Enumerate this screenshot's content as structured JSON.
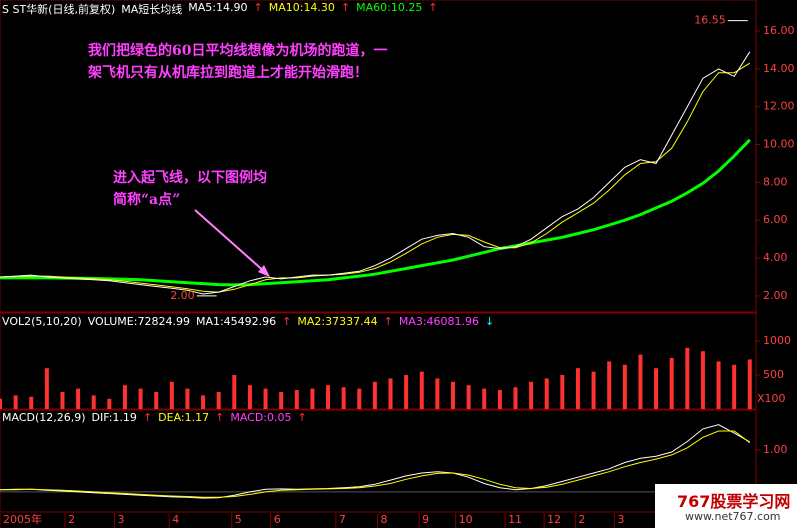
{
  "chart_data": [
    {
      "type": "line",
      "header": [
        {
          "text": "S ST华新(日线,前复权)",
          "color": "#ffffff"
        },
        {
          "text": "MA短长均线",
          "color": "#ffffff"
        },
        {
          "text": "MA5:14.90",
          "color": "#ffffff"
        },
        {
          "text": "↑",
          "color": "#ff3030"
        },
        {
          "text": "MA10:14.30",
          "color": "#ffff00"
        },
        {
          "text": "↑",
          "color": "#ff3030"
        },
        {
          "text": "MA60:10.25",
          "color": "#00ff00"
        },
        {
          "text": "↑",
          "color": "#ff3030"
        }
      ],
      "annotations": [
        "我们把绿色的60日平均线想像为机场的跑道，一",
        "架飞机只有从机库拉到跑道上才能开始滑跑！",
        "进入起飞线，以下图例均",
        "简称“a点”"
      ],
      "point_labels": [
        {
          "label": "16.55",
          "value": 16.55,
          "x": 288
        },
        {
          "label": "2.00",
          "value": 2.0,
          "x": 84
        }
      ],
      "x": [
        0,
        6,
        12,
        18,
        24,
        30,
        36,
        42,
        48,
        54,
        60,
        66,
        72,
        78,
        84,
        90,
        96,
        102,
        108,
        114,
        120,
        126,
        132,
        138,
        144,
        150,
        156,
        162,
        168,
        174,
        180,
        186,
        192,
        198,
        204,
        210,
        216,
        222,
        228,
        234,
        240,
        246,
        252,
        258,
        264,
        270,
        276,
        282,
        288
      ],
      "xlim": [
        0,
        290
      ],
      "xticks": [
        {
          "value": 0,
          "label": "2005年"
        },
        {
          "value": 25,
          "label": "2"
        },
        {
          "value": 44,
          "label": "3"
        },
        {
          "value": 65,
          "label": "4"
        },
        {
          "value": 89,
          "label": "5"
        },
        {
          "value": 104,
          "label": "6"
        },
        {
          "value": 129,
          "label": "7"
        },
        {
          "value": 145,
          "label": "8"
        },
        {
          "value": 161,
          "label": "9"
        },
        {
          "value": 175,
          "label": "10"
        },
        {
          "value": 194,
          "label": "11"
        },
        {
          "value": 209,
          "label": "12"
        },
        {
          "value": 221,
          "label": "2"
        },
        {
          "value": 236,
          "label": "3"
        }
      ],
      "ylim": [
        1.15,
        17.64
      ],
      "yticks": [
        {
          "value": 2,
          "label": "2.00"
        },
        {
          "value": 4,
          "label": "4.00"
        },
        {
          "value": 6,
          "label": "6.00"
        },
        {
          "value": 8,
          "label": "8.00"
        },
        {
          "value": 10,
          "label": "10.00"
        },
        {
          "value": 12,
          "label": "12.00"
        },
        {
          "value": 14,
          "label": "14.00"
        },
        {
          "value": 16,
          "label": "16.00"
        }
      ],
      "series": [
        {
          "color": "#00ff00",
          "width": 3,
          "values": [
            2.95,
            2.95,
            2.95,
            2.95,
            2.94,
            2.93,
            2.92,
            2.9,
            2.88,
            2.85,
            2.8,
            2.75,
            2.7,
            2.65,
            2.6,
            2.58,
            2.6,
            2.65,
            2.7,
            2.75,
            2.8,
            2.85,
            2.95,
            3.05,
            3.15,
            3.3,
            3.45,
            3.6,
            3.75,
            3.9,
            4.1,
            4.3,
            4.5,
            4.65,
            4.8,
            4.95,
            5.1,
            5.3,
            5.5,
            5.75,
            6.0,
            6.3,
            6.65,
            7.0,
            7.45,
            7.95,
            8.6,
            9.4,
            10.25
          ]
        },
        {
          "color": "#ffff00",
          "width": 1,
          "values": [
            3.0,
            3.02,
            3.05,
            3.05,
            3.0,
            2.95,
            2.9,
            2.85,
            2.78,
            2.68,
            2.58,
            2.48,
            2.38,
            2.25,
            2.2,
            2.35,
            2.6,
            2.85,
            2.95,
            2.95,
            3.05,
            3.1,
            3.15,
            3.25,
            3.45,
            3.8,
            4.25,
            4.75,
            5.1,
            5.25,
            5.2,
            4.85,
            4.55,
            4.55,
            4.8,
            5.3,
            5.9,
            6.4,
            6.9,
            7.6,
            8.4,
            9.0,
            9.1,
            9.8,
            11.2,
            12.8,
            13.8,
            13.8,
            14.3
          ]
        },
        {
          "color": "#ffffff",
          "width": 1,
          "values": [
            3.0,
            3.05,
            3.1,
            3.0,
            2.95,
            2.9,
            2.85,
            2.8,
            2.7,
            2.6,
            2.5,
            2.4,
            2.3,
            2.1,
            2.2,
            2.5,
            2.8,
            3.0,
            2.9,
            3.0,
            3.1,
            3.1,
            3.2,
            3.3,
            3.6,
            4.0,
            4.5,
            5.0,
            5.2,
            5.3,
            5.1,
            4.6,
            4.5,
            4.6,
            5.0,
            5.6,
            6.2,
            6.6,
            7.2,
            8.0,
            8.8,
            9.2,
            9.0,
            10.5,
            12.0,
            13.5,
            14.0,
            13.6,
            14.9
          ]
        }
      ]
    },
    {
      "type": "bar",
      "header": [
        {
          "text": "VOL2(5,10,20)",
          "color": "#ffffff"
        },
        {
          "text": "VOLUME:72824.99",
          "color": "#ffffff"
        },
        {
          "text": "MA1:45492.96",
          "color": "#ffffff"
        },
        {
          "text": "↑",
          "color": "#ff3030"
        },
        {
          "text": "MA2:37337.44",
          "color": "#ffff00"
        },
        {
          "text": "↑",
          "color": "#ff3030"
        },
        {
          "text": "MA3:46081.96",
          "color": "#ff40ff"
        },
        {
          "text": "↓",
          "color": "#00ffff"
        }
      ],
      "unit_label": "X100",
      "ylim": [
        0,
        1397
      ],
      "yticks": [
        500,
        1000
      ],
      "series": [
        {
          "color": "#ff3232",
          "values": [
            150,
            200,
            180,
            600,
            250,
            300,
            200,
            150,
            350,
            300,
            250,
            400,
            300,
            200,
            250,
            500,
            350,
            300,
            250,
            280,
            300,
            350,
            320,
            300,
            400,
            450,
            500,
            550,
            450,
            400,
            350,
            300,
            280,
            320,
            400,
            450,
            500,
            600,
            550,
            700,
            650,
            800,
            600,
            750,
            900,
            850,
            700,
            650,
            728
          ]
        }
      ]
    },
    {
      "type": "line",
      "header": [
        {
          "text": "MACD(12,26,9)",
          "color": "#ffffff"
        },
        {
          "text": "DIF:1.19",
          "color": "#ffffff"
        },
        {
          "text": "↑",
          "color": "#ff3030"
        },
        {
          "text": "DEA:1.17",
          "color": "#ffff00"
        },
        {
          "text": "↑",
          "color": "#ff3030"
        },
        {
          "text": "MACD:0.05",
          "color": "#ff40ff"
        },
        {
          "text": "↑",
          "color": "#ff3030"
        }
      ],
      "ylim": [
        -0.48,
        1.95
      ],
      "yticks": [
        {
          "value": 1,
          "label": "1.00"
        }
      ],
      "series": [
        {
          "color": "#ffffff",
          "width": 1,
          "values": [
            0.05,
            0.06,
            0.06,
            0.04,
            0.02,
            0.0,
            -0.02,
            -0.04,
            -0.06,
            -0.08,
            -0.1,
            -0.12,
            -0.13,
            -0.15,
            -0.14,
            -0.08,
            0.0,
            0.06,
            0.07,
            0.06,
            0.07,
            0.08,
            0.1,
            0.12,
            0.18,
            0.28,
            0.38,
            0.45,
            0.48,
            0.45,
            0.35,
            0.2,
            0.1,
            0.05,
            0.08,
            0.15,
            0.25,
            0.35,
            0.45,
            0.55,
            0.7,
            0.8,
            0.85,
            0.95,
            1.2,
            1.5,
            1.6,
            1.4,
            1.19
          ]
        },
        {
          "color": "#ffff00",
          "width": 1,
          "values": [
            0.05,
            0.05,
            0.06,
            0.05,
            0.04,
            0.02,
            0.0,
            -0.02,
            -0.04,
            -0.06,
            -0.08,
            -0.1,
            -0.11,
            -0.13,
            -0.13,
            -0.11,
            -0.06,
            0.0,
            0.04,
            0.05,
            0.06,
            0.07,
            0.08,
            0.1,
            0.14,
            0.2,
            0.3,
            0.38,
            0.44,
            0.45,
            0.4,
            0.3,
            0.18,
            0.1,
            0.08,
            0.11,
            0.18,
            0.28,
            0.38,
            0.48,
            0.6,
            0.7,
            0.78,
            0.88,
            1.05,
            1.3,
            1.45,
            1.45,
            1.17
          ]
        }
      ]
    }
  ],
  "watermark": {
    "title": "767股票学习网",
    "url": "www.net767.com"
  }
}
